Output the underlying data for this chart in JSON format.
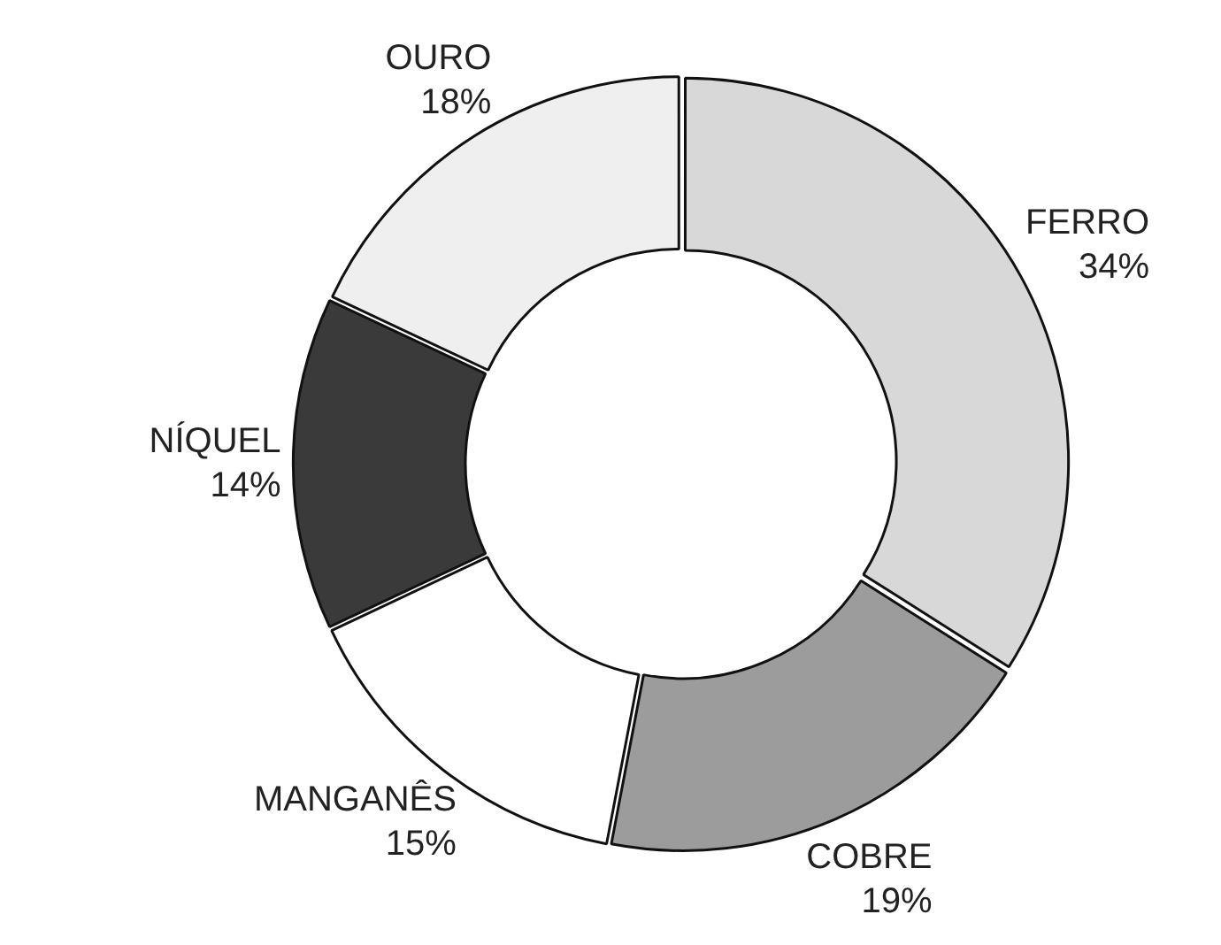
{
  "chart_data": {
    "type": "donut",
    "categories": [
      "FERRO",
      "COBRE",
      "MANGANÊS",
      "NÍQUEL",
      "OURO"
    ],
    "values": [
      34,
      19,
      15,
      14,
      18
    ],
    "value_labels": [
      "34%",
      "19%",
      "15%",
      "14%",
      "18%"
    ],
    "colors": [
      "#d8d8d8",
      "#9c9c9c",
      "#ffffff",
      "#3a3a3a",
      "#efefef"
    ],
    "legend": false
  }
}
